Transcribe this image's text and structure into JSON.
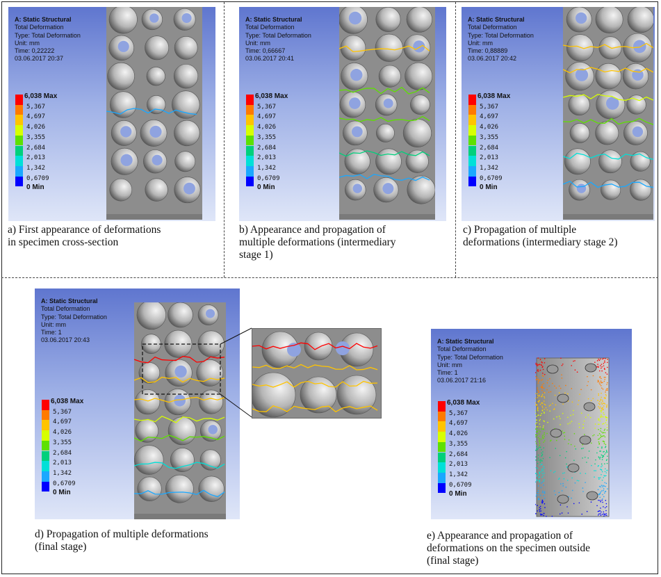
{
  "panels": [
    {
      "id": "a",
      "title": "A: Static Structural",
      "lines": [
        "Total Deformation",
        "Type: Total Deformation",
        "Unit: mm",
        "Time: 0,22222",
        "03.06.2017 20:37"
      ]
    },
    {
      "id": "b",
      "title": "A: Static Structural",
      "lines": [
        "Total Deformation",
        "Type: Total Deformation",
        "Unit: mm",
        "Time: 0,66667",
        "03.06.2017 20:41"
      ]
    },
    {
      "id": "c",
      "title": "A: Static Structural",
      "lines": [
        "Total Deformation",
        "Type: Total Deformation",
        "Unit: mm",
        "Time: 0,88889",
        "03.06.2017 20:42"
      ]
    },
    {
      "id": "d",
      "title": "A: Static Structural",
      "lines": [
        "Total Deformation",
        "Type: Total Deformation",
        "Unit: mm",
        "Time: 1",
        "03.06.2017 20:43"
      ]
    },
    {
      "id": "e",
      "title": "A: Static Structural",
      "lines": [
        "Total Deformation",
        "Type: Total Deformation",
        "Unit: mm",
        "Time: 1",
        "03.06.2017 21:16"
      ]
    }
  ],
  "legend": {
    "max_label": "6,038 Max",
    "values": [
      "5,367",
      "4,697",
      "4,026",
      "3,355",
      "2,684",
      "2,013",
      "1,342",
      "0,6709"
    ],
    "min_label": "0 Min",
    "colors": [
      "#ff0000",
      "#ff7a00",
      "#ffc400",
      "#d7ff00",
      "#5ee000",
      "#00d07c",
      "#00e0d8",
      "#1aa8ff",
      "#0000ff"
    ]
  },
  "captions": {
    "a": [
      "a) First appearance of deformations",
      "in specimen cross-section"
    ],
    "b": [
      "b) Appearance and propagation  of",
      "multiple deformations (intermediary",
      "stage 1)"
    ],
    "c": [
      "c) Propagation  of multiple",
      "deformations (intermediary stage 2)"
    ],
    "d": [
      "d) Propagation  of multiple deformations",
      "(final stage)"
    ],
    "e": [
      "e) Appearance and  propagation  of",
      "deformations  on the specimen outside",
      "(final stage)"
    ]
  }
}
